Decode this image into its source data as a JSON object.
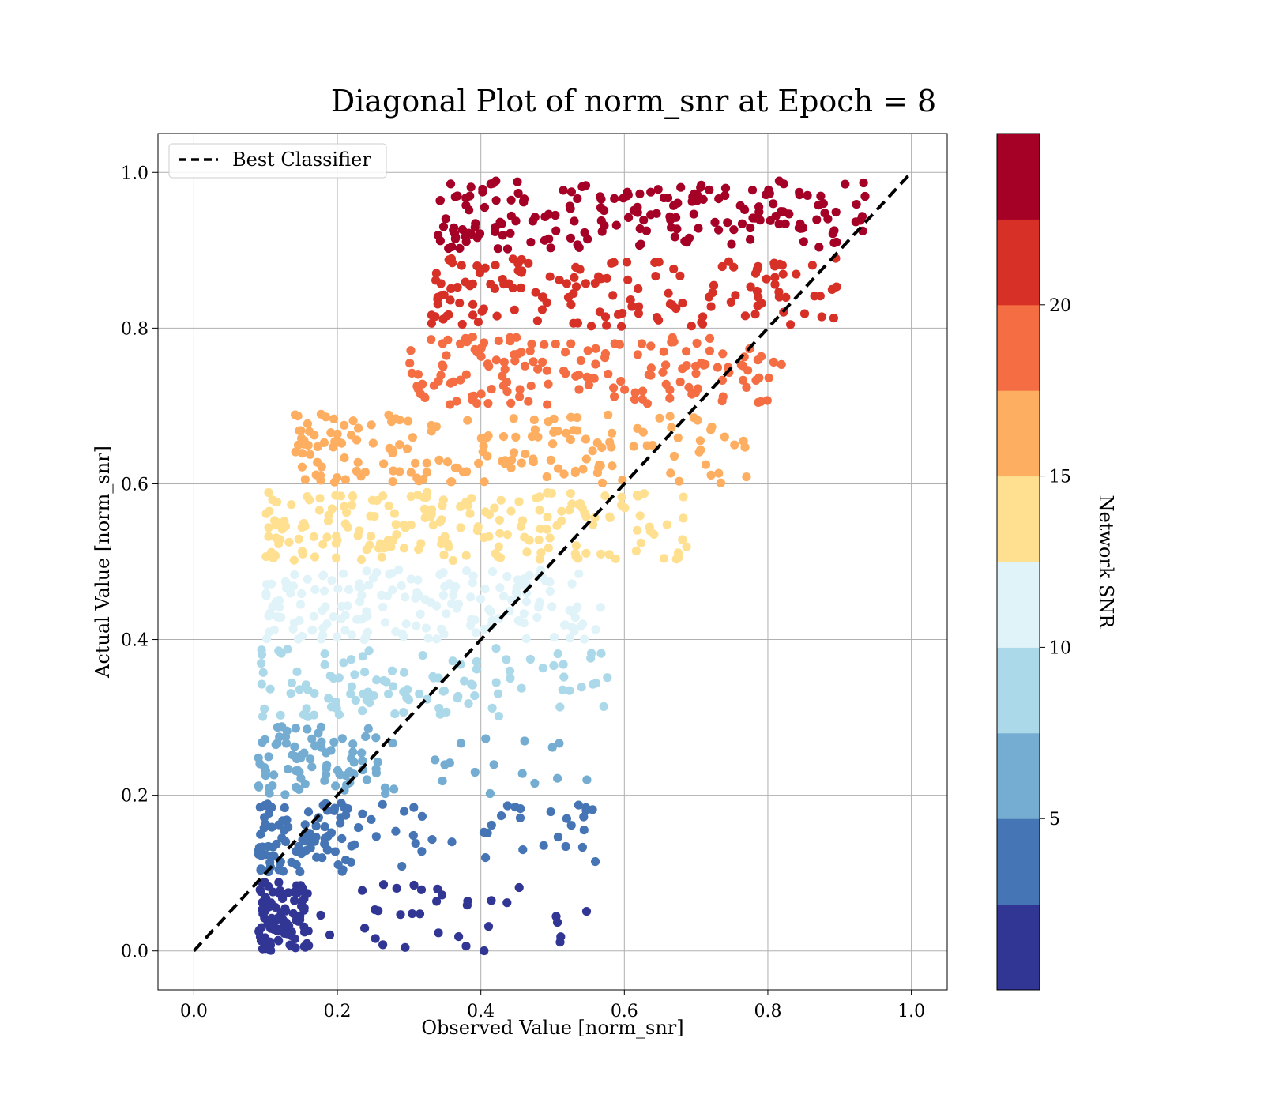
{
  "chart_data": {
    "type": "scatter",
    "title": "Diagonal Plot of norm_snr at Epoch = 8",
    "xlabel": "Observed Value [norm_snr]",
    "ylabel": "Actual Value [norm_snr]",
    "xlim": [
      -0.05,
      1.05
    ],
    "ylim": [
      -0.05,
      1.05
    ],
    "x_ticks": [
      "0.0",
      "0.2",
      "0.4",
      "0.6",
      "0.8",
      "1.0"
    ],
    "y_ticks": [
      "0.0",
      "0.2",
      "0.4",
      "0.6",
      "0.8",
      "1.0"
    ],
    "grid": true,
    "legend": {
      "placement": "upper-left",
      "entries": [
        {
          "label": "Best Classifier",
          "style": "dashed",
          "color": "#000000"
        }
      ]
    },
    "reference_line": {
      "name": "Best Classifier",
      "x": [
        0.0,
        1.0
      ],
      "y": [
        0.0,
        1.0
      ]
    },
    "colorbar": {
      "label": "Network SNR",
      "min": 0,
      "max": 25,
      "tick_values": [
        5,
        10,
        15,
        20
      ],
      "tick_labels": [
        "5",
        "10",
        "15",
        "20"
      ],
      "colors": [
        "#313695",
        "#4575b4",
        "#74add1",
        "#abd9e9",
        "#e0f3f8",
        "#fee090",
        "#fdae61",
        "#f46d43",
        "#d73027",
        "#a50026"
      ]
    },
    "clusters": [
      {
        "band": "0.00-0.09",
        "x_range": [
          0.09,
          0.16
        ],
        "y_range": [
          0.0,
          0.09
        ],
        "count": 90
      },
      {
        "band": "0.00-0.09",
        "x_range": [
          0.16,
          0.55
        ],
        "y_range": [
          0.0,
          0.09
        ],
        "count": 35
      },
      {
        "band": "0.10-0.19",
        "x_range": [
          0.09,
          0.22
        ],
        "y_range": [
          0.1,
          0.19
        ],
        "count": 90
      },
      {
        "band": "0.10-0.19",
        "x_range": [
          0.22,
          0.56
        ],
        "y_range": [
          0.1,
          0.19
        ],
        "count": 40
      },
      {
        "band": "0.20-0.29",
        "x_range": [
          0.09,
          0.26
        ],
        "y_range": [
          0.2,
          0.29
        ],
        "count": 80
      },
      {
        "band": "0.20-0.29",
        "x_range": [
          0.26,
          0.56
        ],
        "y_range": [
          0.2,
          0.29
        ],
        "count": 20
      },
      {
        "band": "0.30-0.39",
        "x_range": [
          0.09,
          0.58
        ],
        "y_range": [
          0.3,
          0.39
        ],
        "count": 110
      },
      {
        "band": "0.40-0.49",
        "x_range": [
          0.1,
          0.58
        ],
        "y_range": [
          0.4,
          0.49
        ],
        "count": 180
      },
      {
        "band": "0.50-0.59",
        "x_range": [
          0.1,
          0.69
        ],
        "y_range": [
          0.5,
          0.59
        ],
        "count": 200
      },
      {
        "band": "0.60-0.69",
        "x_range": [
          0.14,
          0.78
        ],
        "y_range": [
          0.6,
          0.69
        ],
        "count": 170
      },
      {
        "band": "0.70-0.79",
        "x_range": [
          0.3,
          0.82
        ],
        "y_range": [
          0.7,
          0.79
        ],
        "count": 160
      },
      {
        "band": "0.80-0.89",
        "x_range": [
          0.33,
          0.9
        ],
        "y_range": [
          0.8,
          0.89
        ],
        "count": 150
      },
      {
        "band": "0.90-1.00",
        "x_range": [
          0.34,
          0.94
        ],
        "y_range": [
          0.9,
          0.99
        ],
        "count": 190
      }
    ]
  }
}
